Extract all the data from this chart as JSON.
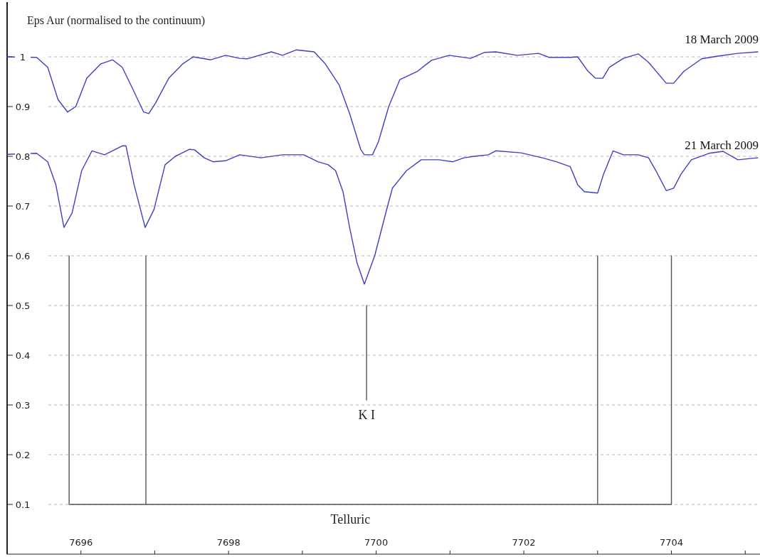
{
  "chart_data": {
    "type": "line",
    "title": "Eps Aur  (normalised to the continuum)",
    "xlim": [
      7695,
      7705.2
    ],
    "ylim": [
      0,
      1.11
    ],
    "xticks": [
      7696,
      {
        "value": 7697,
        "label": null
      },
      7698,
      {
        "value": 7699,
        "label": null
      },
      7700,
      {
        "value": 7701,
        "label": null
      },
      7702,
      {
        "value": 7703,
        "label": null
      },
      7704,
      {
        "value": 7705,
        "label": null
      }
    ],
    "yticks": [
      0.1,
      0.2,
      0.3,
      0.4,
      0.5,
      0.6,
      0.7,
      0.8,
      0.9,
      1
    ],
    "grid": "y",
    "annotations": [
      "K I",
      "Telluric"
    ],
    "series": [
      {
        "name": "18 March 2009",
        "color": "#3f3fc4",
        "x": [
          7695.0,
          7695.4,
          7695.55,
          7695.69,
          7695.82,
          7695.93,
          7696.08,
          7696.27,
          7696.43,
          7696.56,
          7696.7,
          7696.85,
          7696.92,
          7697.01,
          7697.19,
          7697.38,
          7697.52,
          7697.76,
          7697.96,
          7698.15,
          7698.25,
          7698.58,
          7698.73,
          7698.92,
          7699.16,
          7699.31,
          7699.5,
          7699.64,
          7699.79,
          7699.84,
          7699.95,
          7700.03,
          7700.17,
          7700.32,
          7700.56,
          7700.75,
          7700.99,
          7701.28,
          7701.47,
          7701.62,
          7701.91,
          7702.2,
          7702.34,
          7702.63,
          7702.73,
          7702.87,
          7702.97,
          7703.07,
          7703.16,
          7703.35,
          7703.55,
          7703.69,
          7703.93,
          7704.03,
          7704.17,
          7704.41,
          7704.61,
          7704.9,
          7705.17
        ],
        "values": [
          1.0,
          0.999,
          0.979,
          0.914,
          0.889,
          0.9,
          0.957,
          0.986,
          0.994,
          0.979,
          0.936,
          0.889,
          0.886,
          0.907,
          0.957,
          0.986,
          1.0,
          0.994,
          1.003,
          0.997,
          0.996,
          1.01,
          1.003,
          1.014,
          1.01,
          0.986,
          0.943,
          0.886,
          0.814,
          0.803,
          0.803,
          0.829,
          0.9,
          0.954,
          0.971,
          0.993,
          1.003,
          0.997,
          1.009,
          1.01,
          1.003,
          1.007,
          0.999,
          0.999,
          1.0,
          0.971,
          0.957,
          0.957,
          0.979,
          0.997,
          1.006,
          0.989,
          0.947,
          0.947,
          0.971,
          0.996,
          1.001,
          1.007,
          1.01
        ]
      },
      {
        "name": "21 March 2009",
        "color": "#3f3fc4",
        "x": [
          7695.0,
          7695.4,
          7695.55,
          7695.66,
          7695.77,
          7695.88,
          7696.01,
          7696.15,
          7696.32,
          7696.56,
          7696.61,
          7696.72,
          7696.87,
          7696.99,
          7697.14,
          7697.28,
          7697.47,
          7697.54,
          7697.67,
          7697.79,
          7697.96,
          7698.15,
          7698.44,
          7698.73,
          7699.02,
          7699.21,
          7699.35,
          7699.45,
          7699.55,
          7699.64,
          7699.74,
          7699.84,
          7699.98,
          7700.13,
          7700.22,
          7700.41,
          7700.61,
          7700.85,
          7701.04,
          7701.19,
          7701.33,
          7701.52,
          7701.62,
          7701.96,
          7702.25,
          7702.44,
          7702.63,
          7702.73,
          7702.82,
          7703.0,
          7703.08,
          7703.21,
          7703.35,
          7703.55,
          7703.69,
          7703.79,
          7703.93,
          7704.03,
          7704.13,
          7704.27,
          7704.51,
          7704.7,
          7704.9,
          7705.17
        ],
        "values": [
          0.804,
          0.806,
          0.789,
          0.743,
          0.657,
          0.686,
          0.771,
          0.811,
          0.803,
          0.821,
          0.821,
          0.743,
          0.657,
          0.693,
          0.783,
          0.8,
          0.814,
          0.813,
          0.797,
          0.789,
          0.791,
          0.803,
          0.797,
          0.803,
          0.803,
          0.789,
          0.783,
          0.771,
          0.729,
          0.657,
          0.586,
          0.543,
          0.6,
          0.686,
          0.736,
          0.771,
          0.793,
          0.793,
          0.789,
          0.797,
          0.8,
          0.803,
          0.811,
          0.807,
          0.797,
          0.789,
          0.779,
          0.743,
          0.729,
          0.726,
          0.764,
          0.811,
          0.803,
          0.803,
          0.797,
          0.771,
          0.731,
          0.736,
          0.764,
          0.793,
          0.806,
          0.81,
          0.793,
          0.797
        ]
      },
      {
        "color": "#555555",
        "x": [
          7699.87,
          7699.87
        ],
        "values": [
          0.5,
          0.31
        ]
      },
      {
        "color": "#555555",
        "x": [
          7695.84,
          7695.84,
          7696.88,
          7696.88,
          7696.88,
          7703.0,
          7703.0,
          7703.0,
          7704.0,
          7704.0
        ],
        "values": [
          0.6,
          0.1,
          0.1,
          0.6,
          0.1,
          0.1,
          0.6,
          0.1,
          0.1,
          0.6
        ]
      }
    ]
  }
}
